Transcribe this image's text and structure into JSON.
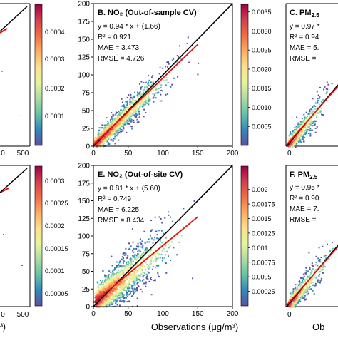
{
  "figure": {
    "xlabel": "Observations (μg/m³)",
    "left_edge": {
      "top_tick_labels": [
        "0",
        "500"
      ],
      "bottom_tick_labels": [
        "0",
        "500"
      ],
      "top_cbar_ticks": [
        "0.0004",
        "0.0003",
        "0.0002",
        "0.0001"
      ],
      "bottom_cbar_ticks": [
        "0.0003",
        "0.00025",
        "0.0002",
        "0.00015",
        "0.0001",
        "0.00005"
      ]
    },
    "right_edge": {
      "top_title": "C. PM",
      "top_title_sub": "2.5",
      "top_stats": [
        "y = 0.97 *",
        "R² = 0.94",
        "MAE = 5.",
        "RMSE ="
      ],
      "bottom_title": "F. PM",
      "bottom_title_sub": "2.5",
      "bottom_stats": [
        "y = 0.95 *",
        "R² = 0.90",
        "MAE = 7.",
        "RMSE ="
      ],
      "xlabel_fragment": "Ob"
    }
  },
  "chart_data": [
    {
      "type": "scatter",
      "title": "B. NO₂ (Out-of-sample CV)",
      "xlabel": "",
      "ylabel": "",
      "xlim": [
        0,
        200
      ],
      "ylim": [
        0,
        200
      ],
      "x_ticks": [
        0,
        50,
        100,
        150,
        200
      ],
      "y_ticks": [
        0,
        25,
        50,
        75,
        100,
        125,
        150,
        175,
        200
      ],
      "stats": [
        "y = 0.94 * x + (1.66)",
        "R² = 0.921",
        "MAE = 3.473",
        "RMSE = 4.726"
      ],
      "fit_line": {
        "slope": 0.94,
        "intercept": 1.66,
        "x_range": [
          0,
          150
        ]
      },
      "identity_line": [
        0,
        200
      ],
      "colorbar": {
        "min": 0,
        "max": 0.0037,
        "ticks": [
          "0.0035",
          "0.0030",
          "0.0025",
          "0.0020",
          "0.0015",
          "0.0010",
          "0.0005"
        ],
        "tick_values": [
          0.0035,
          0.003,
          0.0025,
          0.002,
          0.0015,
          0.001,
          0.0005
        ]
      },
      "point_cloud": {
        "x_max": 150,
        "spread": 9,
        "count": 1400
      }
    },
    {
      "type": "scatter",
      "title": "E. NO₂ (Out-of-site CV)",
      "xlabel": "Observations (μg/m³)",
      "ylabel": "",
      "xlim": [
        0,
        200
      ],
      "ylim": [
        0,
        200
      ],
      "x_ticks": [
        0,
        50,
        100,
        150,
        200
      ],
      "y_ticks": [
        0,
        25,
        50,
        75,
        100,
        125,
        150,
        175,
        200
      ],
      "stats": [
        "y = 0.81 * x + (5.60)",
        "R² = 0.749",
        "MAE = 6.225",
        "RMSE = 8.434"
      ],
      "fit_line": {
        "slope": 0.81,
        "intercept": 5.6,
        "x_range": [
          0,
          150
        ]
      },
      "identity_line": [
        0,
        200
      ],
      "colorbar": {
        "min": 0,
        "max": 0.0024,
        "ticks": [
          "0.002",
          "0.00175",
          "0.0015",
          "0.00125",
          "0.001",
          "0.00075",
          "0.0005",
          "0.00025"
        ],
        "tick_values": [
          0.002,
          0.00175,
          0.0015,
          0.00125,
          0.001,
          0.00075,
          0.0005,
          0.00025
        ]
      },
      "point_cloud": {
        "x_max": 150,
        "spread": 16,
        "count": 1600
      }
    }
  ],
  "colors": {
    "fit_line": "#e01010",
    "identity_line": "#000000",
    "colormap": [
      "#5e4fa2",
      "#3288bd",
      "#66c2a5",
      "#abdda4",
      "#e6f598",
      "#fee08b",
      "#fdae61",
      "#f46d43",
      "#d53e4f",
      "#9e0142"
    ]
  }
}
